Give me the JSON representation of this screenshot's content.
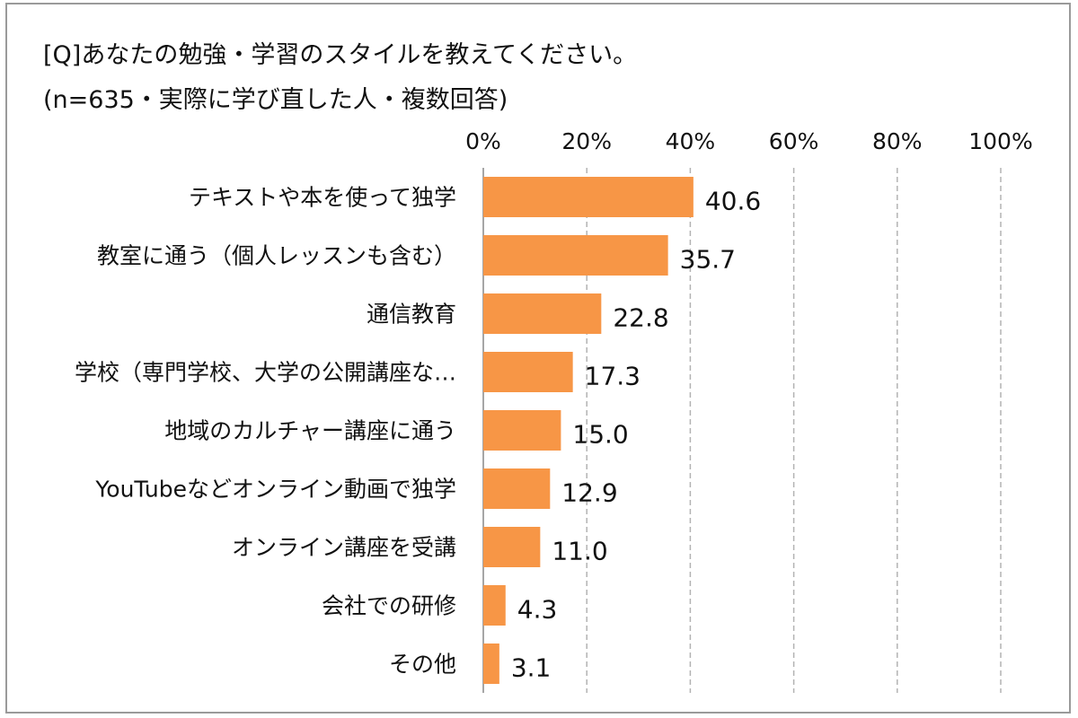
{
  "chart_data": {
    "type": "bar",
    "orientation": "horizontal",
    "title": "[Q]あなたの勉強・学習のスタイルを教えてください。",
    "subtitle": "(n=635・実際に学び直した人・複数回答)",
    "categories": [
      "テキストや本を使って独学",
      "教室に通う（個人レッスンも含む）",
      "通信教育",
      "学校（専門学校、大学の公開講座な…",
      "地域のカルチャー講座に通う",
      "YouTubeなどオンライン動画で独学",
      "オンライン講座を受講",
      "会社での研修",
      "その他"
    ],
    "values": [
      40.6,
      35.7,
      22.8,
      17.3,
      15.0,
      12.9,
      11.0,
      4.3,
      3.1
    ],
    "value_labels": [
      "40.6",
      "35.7",
      "22.8",
      "17.3",
      "15.0",
      "12.9",
      "11.0",
      "4.3",
      "3.1"
    ],
    "xlim": [
      0,
      100
    ],
    "x_ticks": [
      0,
      20,
      40,
      60,
      80,
      100
    ],
    "x_tick_labels": [
      "0%",
      "20%",
      "40%",
      "60%",
      "80%",
      "100%"
    ],
    "xaxis_position": "top",
    "grid": "vertical dashed",
    "legend": "none",
    "colors": {
      "bar": "#F79646",
      "grid": "#b3b3b3",
      "axis": "#a6a6a6",
      "text": "#111111"
    }
  }
}
